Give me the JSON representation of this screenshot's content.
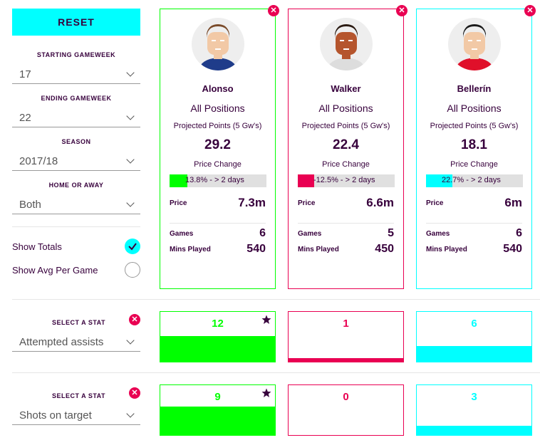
{
  "sidebar": {
    "reset_label": "RESET",
    "starting_gameweek": {
      "label": "STARTING GAMEWEEK",
      "value": "17"
    },
    "ending_gameweek": {
      "label": "ENDING GAMEWEEK",
      "value": "22"
    },
    "season": {
      "label": "SEASON",
      "value": "2017/18"
    },
    "home_or_away": {
      "label": "HOME OR AWAY",
      "value": "Both"
    },
    "show_totals": {
      "label": "Show Totals",
      "checked": true
    },
    "show_avg": {
      "label": "Show Avg Per Game",
      "checked": false
    }
  },
  "stat_selects": [
    {
      "label": "SELECT A STAT",
      "value": "Attempted assists"
    },
    {
      "label": "SELECT A STAT",
      "value": "Shots on target"
    }
  ],
  "players": [
    {
      "name": "Alonso",
      "positions": "All Positions",
      "projected_label": "Projected Points (5 Gw's)",
      "projected": "29.2",
      "price_change_label": "Price Change",
      "price_change_text": "13.8% - > 2 days",
      "price_change_fill": 0.138,
      "price_label": "Price",
      "price": "7.3m",
      "games_label": "Games",
      "games": "6",
      "mins_label": "Mins Played",
      "mins": "540",
      "color": "#00ff00",
      "shirt": "#1f3c8a",
      "hair": "#7a4b2a",
      "skin": "#f2c9a6"
    },
    {
      "name": "Walker",
      "positions": "All Positions",
      "projected_label": "Projected Points (5 Gw's)",
      "projected": "22.4",
      "price_change_label": "Price Change",
      "price_change_text": "-12.5% - > 2 days",
      "price_change_fill": 0.125,
      "price_label": "Price",
      "price": "6.6m",
      "games_label": "Games",
      "games": "5",
      "mins_label": "Mins Played",
      "mins": "450",
      "color": "#e90052",
      "shirt": "#dddddd",
      "hair": "#2a1a12",
      "skin": "#b5552d"
    },
    {
      "name": "Bellerín",
      "positions": "All Positions",
      "projected_label": "Projected Points (5 Gw's)",
      "projected": "18.1",
      "price_change_label": "Price Change",
      "price_change_text": "22.7% - > 2 days",
      "price_change_fill": 0.227,
      "price_label": "Price",
      "price": "6m",
      "games_label": "Games",
      "games": "6",
      "mins_label": "Mins Played",
      "mins": "540",
      "color": "#00ffff",
      "shirt": "#e0102a",
      "hair": "#1a1a1a",
      "skin": "#f2c9a6"
    }
  ],
  "stats": [
    {
      "values": [
        "12",
        "1",
        "6"
      ],
      "fills": [
        0.5,
        0.0625,
        0.3
      ],
      "star_index": 0
    },
    {
      "values": [
        "9",
        "0",
        "3"
      ],
      "fills": [
        0.55,
        0.0,
        0.18
      ],
      "star_index": 0
    }
  ],
  "icons": {
    "remove": "close-circle-icon",
    "check": "check-icon",
    "star": "star-icon",
    "chevron": "chevron-down-icon"
  },
  "colors": {
    "accent": "#00ffff",
    "primary": "#37003c",
    "danger": "#e90052",
    "green": "#00ff00"
  }
}
